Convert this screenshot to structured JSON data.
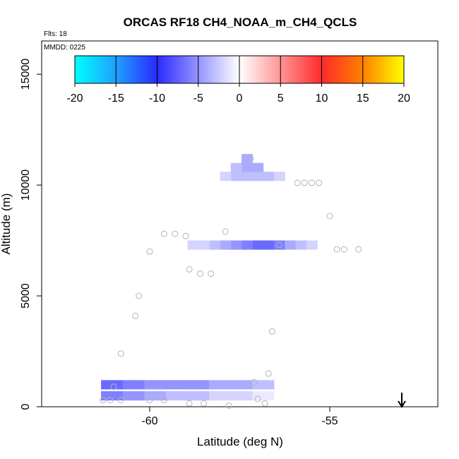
{
  "chart_data": {
    "type": "heatmap",
    "title": "ORCAS RF18 CH4_NOAA_m_CH4_QCLS",
    "annotations": {
      "flights": "Flts: 18",
      "date": "MMDD: 0225"
    },
    "xlabel": "Latitude (deg N)",
    "ylabel": "Altitude (m)",
    "xlim": [
      -63,
      -52
    ],
    "ylim": [
      0,
      16500
    ],
    "x_ticks": [
      -60,
      -55
    ],
    "x_tick_labels": [
      "-60",
      "-55"
    ],
    "y_ticks": [
      0,
      5000,
      10000,
      15000
    ],
    "y_tick_labels": [
      "0",
      "5000",
      "10000",
      "15000"
    ],
    "colorbar": {
      "min": -20,
      "max": 20,
      "ticks": [
        -20,
        -15,
        -10,
        -5,
        0,
        5,
        10,
        15,
        20
      ],
      "tick_labels": [
        "-20",
        "-15",
        "-10",
        "-5",
        "0",
        "5",
        "10",
        "15",
        "20"
      ],
      "colors": [
        "#00ffff",
        "#1e90ff",
        "#2a2aff",
        "#ffffff",
        "#ff2a2a",
        "#ff7f00",
        "#ffff00"
      ]
    },
    "cells": [
      {
        "lat": -61.2,
        "alt": 1000,
        "v": -7
      },
      {
        "lat": -60.9,
        "alt": 1000,
        "v": -7
      },
      {
        "lat": -60.6,
        "alt": 1000,
        "v": -6
      },
      {
        "lat": -60.3,
        "alt": 1000,
        "v": -6
      },
      {
        "lat": -60.0,
        "alt": 1000,
        "v": -5
      },
      {
        "lat": -59.7,
        "alt": 1000,
        "v": -5
      },
      {
        "lat": -59.4,
        "alt": 1000,
        "v": -5
      },
      {
        "lat": -59.1,
        "alt": 1000,
        "v": -5
      },
      {
        "lat": -58.8,
        "alt": 1000,
        "v": -5
      },
      {
        "lat": -58.5,
        "alt": 1000,
        "v": -5
      },
      {
        "lat": -58.2,
        "alt": 1000,
        "v": -4
      },
      {
        "lat": -57.9,
        "alt": 1000,
        "v": -4
      },
      {
        "lat": -57.6,
        "alt": 1000,
        "v": -4
      },
      {
        "lat": -57.3,
        "alt": 1000,
        "v": -4
      },
      {
        "lat": -57.0,
        "alt": 1000,
        "v": -3
      },
      {
        "lat": -56.7,
        "alt": 1000,
        "v": -3
      },
      {
        "lat": -61.2,
        "alt": 500,
        "v": -6
      },
      {
        "lat": -60.9,
        "alt": 500,
        "v": -6
      },
      {
        "lat": -60.6,
        "alt": 500,
        "v": -5
      },
      {
        "lat": -60.3,
        "alt": 500,
        "v": -5
      },
      {
        "lat": -60.0,
        "alt": 500,
        "v": -4
      },
      {
        "lat": -59.7,
        "alt": 500,
        "v": -4
      },
      {
        "lat": -59.4,
        "alt": 500,
        "v": -3
      },
      {
        "lat": -59.1,
        "alt": 500,
        "v": -3
      },
      {
        "lat": -58.8,
        "alt": 500,
        "v": -3
      },
      {
        "lat": -58.5,
        "alt": 500,
        "v": -3
      },
      {
        "lat": -58.2,
        "alt": 500,
        "v": -2
      },
      {
        "lat": -57.9,
        "alt": 500,
        "v": -2
      },
      {
        "lat": -57.6,
        "alt": 500,
        "v": -2
      },
      {
        "lat": -57.3,
        "alt": 500,
        "v": -2
      },
      {
        "lat": -57.0,
        "alt": 500,
        "v": -1
      },
      {
        "lat": -56.7,
        "alt": 500,
        "v": -1
      },
      {
        "lat": -56.7,
        "alt": 7300,
        "v": -7
      },
      {
        "lat": -57.0,
        "alt": 7300,
        "v": -7
      },
      {
        "lat": -57.3,
        "alt": 7300,
        "v": -6
      },
      {
        "lat": -56.4,
        "alt": 7300,
        "v": -6
      },
      {
        "lat": -57.6,
        "alt": 7300,
        "v": -5
      },
      {
        "lat": -56.1,
        "alt": 7300,
        "v": -4
      },
      {
        "lat": -57.9,
        "alt": 7300,
        "v": -4
      },
      {
        "lat": -58.2,
        "alt": 7300,
        "v": -3
      },
      {
        "lat": -58.5,
        "alt": 7300,
        "v": -2
      },
      {
        "lat": -58.8,
        "alt": 7300,
        "v": -2
      },
      {
        "lat": -55.8,
        "alt": 7300,
        "v": -3
      },
      {
        "lat": -55.5,
        "alt": 7300,
        "v": -2
      },
      {
        "lat": -57.3,
        "alt": 11200,
        "v": -4
      },
      {
        "lat": -57.0,
        "alt": 10800,
        "v": -4
      },
      {
        "lat": -57.3,
        "alt": 10800,
        "v": -4
      },
      {
        "lat": -57.6,
        "alt": 10800,
        "v": -3
      },
      {
        "lat": -57.6,
        "alt": 10400,
        "v": -3
      },
      {
        "lat": -57.0,
        "alt": 10400,
        "v": -3
      },
      {
        "lat": -57.3,
        "alt": 10400,
        "v": -3
      },
      {
        "lat": -56.7,
        "alt": 10400,
        "v": -3
      },
      {
        "lat": -57.9,
        "alt": 10400,
        "v": -2
      },
      {
        "lat": -56.4,
        "alt": 10400,
        "v": -2
      }
    ],
    "flight_points": [
      {
        "lat": -57.2,
        "alt": 11200
      },
      {
        "lat": -55.9,
        "alt": 10100
      },
      {
        "lat": -55.7,
        "alt": 10100
      },
      {
        "lat": -55.5,
        "alt": 10100
      },
      {
        "lat": -55.3,
        "alt": 10100
      },
      {
        "lat": -55.0,
        "alt": 8600
      },
      {
        "lat": -59.6,
        "alt": 7800
      },
      {
        "lat": -59.3,
        "alt": 7800
      },
      {
        "lat": -59.0,
        "alt": 7700
      },
      {
        "lat": -57.9,
        "alt": 7900
      },
      {
        "lat": -56.4,
        "alt": 7300
      },
      {
        "lat": -60.0,
        "alt": 7000
      },
      {
        "lat": -54.8,
        "alt": 7100
      },
      {
        "lat": -54.6,
        "alt": 7100
      },
      {
        "lat": -54.2,
        "alt": 7100
      },
      {
        "lat": -58.9,
        "alt": 6200
      },
      {
        "lat": -58.6,
        "alt": 6000
      },
      {
        "lat": -58.3,
        "alt": 6000
      },
      {
        "lat": -60.3,
        "alt": 5000
      },
      {
        "lat": -60.4,
        "alt": 4100
      },
      {
        "lat": -56.6,
        "alt": 3400
      },
      {
        "lat": -60.8,
        "alt": 2400
      },
      {
        "lat": -56.7,
        "alt": 1500
      },
      {
        "lat": -57.1,
        "alt": 1100
      },
      {
        "lat": -61.3,
        "alt": 300
      },
      {
        "lat": -61.1,
        "alt": 300
      },
      {
        "lat": -60.8,
        "alt": 300
      },
      {
        "lat": -61.0,
        "alt": 900
      },
      {
        "lat": -60.0,
        "alt": 300
      },
      {
        "lat": -59.6,
        "alt": 300
      },
      {
        "lat": -58.9,
        "alt": 150
      },
      {
        "lat": -58.5,
        "alt": 150
      },
      {
        "lat": -57.8,
        "alt": 50
      },
      {
        "lat": -57.0,
        "alt": 350
      },
      {
        "lat": -56.8,
        "alt": 150
      }
    ],
    "arrow_marker": {
      "lat": -53.0,
      "direction": "down"
    }
  }
}
